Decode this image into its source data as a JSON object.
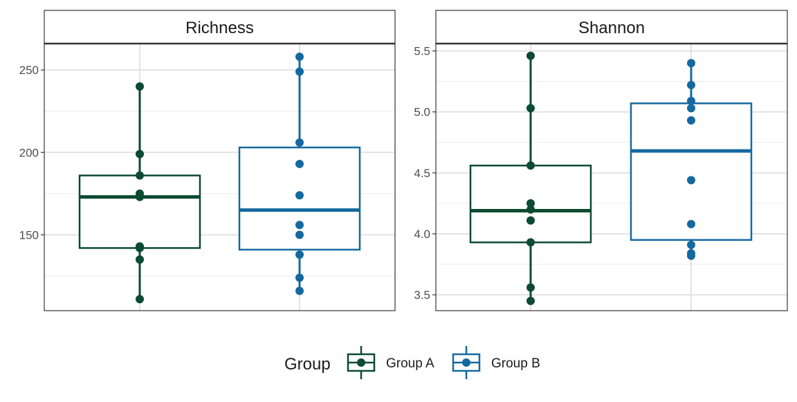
{
  "chart_data": [
    {
      "type": "box",
      "title": "Richness",
      "ylim": [
        104,
        266
      ],
      "yticks": [
        150,
        200,
        250
      ],
      "grid": true,
      "groups": [
        {
          "name": "Group A",
          "color": "#0b4a33",
          "box": {
            "q1": 142,
            "median": 173,
            "q3": 186
          },
          "whisker": [
            111,
            240
          ],
          "points": [
            240,
            199,
            186,
            175,
            173,
            143,
            142,
            135,
            111
          ]
        },
        {
          "name": "Group B",
          "color": "#1469a0",
          "box": {
            "q1": 141,
            "median": 165,
            "q3": 203
          },
          "whisker": [
            116,
            258
          ],
          "points": [
            258,
            249,
            206,
            193,
            174,
            156,
            150,
            138,
            124,
            116
          ]
        }
      ]
    },
    {
      "type": "box",
      "title": "Shannon",
      "ylim": [
        3.37,
        5.56
      ],
      "yticks": [
        3.5,
        4.0,
        4.5,
        5.0,
        5.5
      ],
      "grid": true,
      "groups": [
        {
          "name": "Group A",
          "color": "#0b4a33",
          "box": {
            "q1": 3.93,
            "median": 4.19,
            "q3": 4.56
          },
          "whisker": [
            3.45,
            5.46
          ],
          "points": [
            5.46,
            5.03,
            4.56,
            4.25,
            4.2,
            4.11,
            3.93,
            3.56,
            3.45
          ]
        },
        {
          "name": "Group B",
          "color": "#1469a0",
          "box": {
            "q1": 3.95,
            "median": 4.68,
            "q3": 5.07
          },
          "whisker": [
            3.82,
            5.4
          ],
          "points": [
            5.4,
            5.22,
            5.09,
            5.03,
            4.93,
            4.44,
            4.08,
            3.91,
            3.84,
            3.82
          ]
        }
      ]
    }
  ],
  "legend": {
    "title": "Group",
    "position": "bottom",
    "items": [
      {
        "label": "Group A",
        "color": "#0b4a33"
      },
      {
        "label": "Group B",
        "color": "#1469a0"
      }
    ]
  }
}
